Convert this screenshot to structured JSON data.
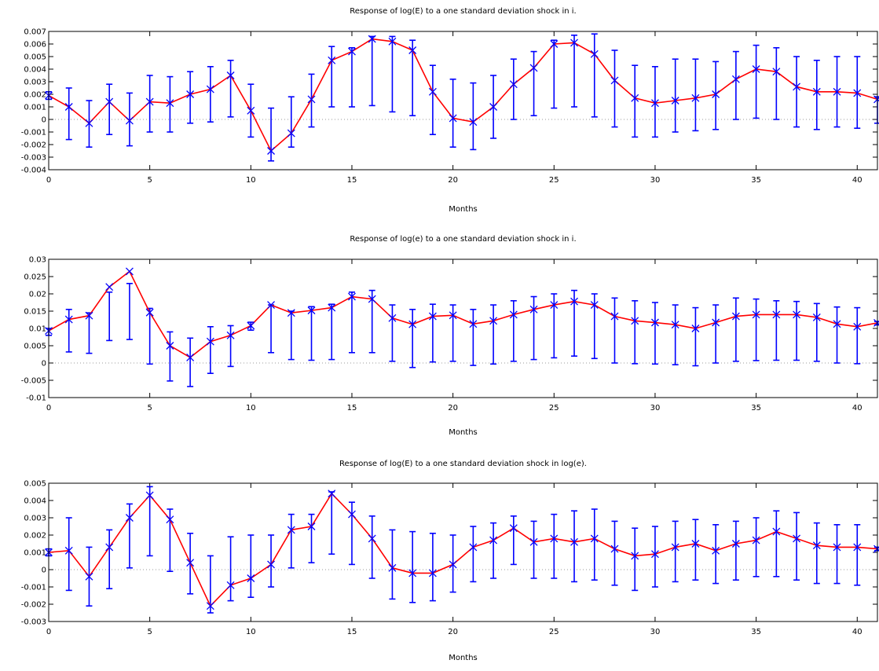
{
  "colors": {
    "line": "#ff0000",
    "errorbar": "#0000ff",
    "marker": "#0000ff",
    "zero": "#999999",
    "axis": "#000000"
  },
  "chart_data": [
    {
      "type": "line",
      "title": "Response of log(E) to a one standard deviation shock in i.",
      "xlabel": "Months",
      "ylabel": "",
      "xlim": [
        0,
        41
      ],
      "ylim": [
        -0.004,
        0.007
      ],
      "xticks": [
        0,
        5,
        10,
        15,
        20,
        25,
        30,
        35,
        40
      ],
      "xtick_labels": [
        "0",
        "5",
        "10",
        "15",
        "20",
        "25",
        "30",
        "35",
        "40"
      ],
      "yticks": [
        -0.004,
        -0.003,
        -0.002,
        -0.001,
        0,
        0.001,
        0.002,
        0.003,
        0.004,
        0.005,
        0.006,
        0.007
      ],
      "ytick_labels": [
        "-0.004",
        "-0.003",
        "-0.002",
        "-0.001",
        "0",
        "0.001",
        "0.002",
        "0.003",
        "0.004",
        "0.005",
        "0.006",
        "0.007"
      ],
      "grid": false,
      "zero_line": true,
      "x": [
        0,
        1,
        2,
        3,
        4,
        5,
        6,
        7,
        8,
        9,
        10,
        11,
        12,
        13,
        14,
        15,
        16,
        17,
        18,
        19,
        20,
        21,
        22,
        23,
        24,
        25,
        26,
        27,
        28,
        29,
        30,
        31,
        32,
        33,
        34,
        35,
        36,
        37,
        38,
        39,
        40,
        41
      ],
      "values": [
        0.0019,
        0.001,
        -0.0003,
        0.0014,
        -0.0001,
        0.0014,
        0.0013,
        0.002,
        0.0024,
        0.0035,
        0.0007,
        -0.0025,
        -0.0011,
        0.0016,
        0.0047,
        0.0054,
        0.0064,
        0.0062,
        0.0055,
        0.0022,
        0.0001,
        -0.0002,
        0.001,
        0.0028,
        0.0041,
        0.006,
        0.0061,
        0.0052,
        0.0031,
        0.0017,
        0.0013,
        0.0015,
        0.0017,
        0.002,
        0.0032,
        0.004,
        0.0038,
        0.0026,
        0.0022,
        0.0022,
        0.0021,
        0.0016
      ],
      "lower": [
        0.0016,
        -0.0016,
        -0.0022,
        -0.0012,
        -0.0021,
        -0.001,
        -0.001,
        -0.0003,
        -0.0002,
        0.0002,
        -0.0014,
        -0.0033,
        -0.0022,
        -0.0006,
        0.001,
        0.001,
        0.0011,
        0.0006,
        0.0003,
        -0.0012,
        -0.0022,
        -0.0024,
        -0.0015,
        0.0,
        0.0003,
        0.0009,
        0.001,
        0.0002,
        -0.0006,
        -0.0014,
        -0.0014,
        -0.001,
        -0.0009,
        -0.0008,
        0.0,
        0.0001,
        0.0,
        -0.0006,
        -0.0008,
        -0.0006,
        -0.0007,
        -0.0003
      ],
      "upper": [
        0.0022,
        0.0025,
        0.0015,
        0.0028,
        0.0021,
        0.0035,
        0.0034,
        0.0038,
        0.0042,
        0.0047,
        0.0028,
        0.0009,
        0.0018,
        0.0036,
        0.0058,
        0.0057,
        0.0066,
        0.0066,
        0.0063,
        0.0043,
        0.0032,
        0.0029,
        0.0035,
        0.0048,
        0.0054,
        0.0063,
        0.0067,
        0.0068,
        0.0055,
        0.0043,
        0.0042,
        0.0048,
        0.0048,
        0.0046,
        0.0054,
        0.0059,
        0.0057,
        0.005,
        0.0047,
        0.005,
        0.005,
        0.0018
      ]
    },
    {
      "type": "line",
      "title": "Response of log(e) to a one standard deviation shock in i.",
      "xlabel": "Months",
      "ylabel": "",
      "xlim": [
        0,
        41
      ],
      "ylim": [
        -0.01,
        0.03
      ],
      "xticks": [
        0,
        5,
        10,
        15,
        20,
        25,
        30,
        35,
        40
      ],
      "xtick_labels": [
        "0",
        "5",
        "10",
        "15",
        "20",
        "25",
        "30",
        "35",
        "40"
      ],
      "yticks": [
        -0.01,
        -0.005,
        0,
        0.005,
        0.01,
        0.015,
        0.02,
        0.025,
        0.03
      ],
      "ytick_labels": [
        "-0.01",
        "-0.005",
        "0",
        "0.005",
        "0.01",
        "0.015",
        "0.02",
        "0.025",
        "0.03"
      ],
      "grid": false,
      "zero_line": true,
      "x": [
        0,
        1,
        2,
        3,
        4,
        5,
        6,
        7,
        8,
        9,
        10,
        11,
        12,
        13,
        14,
        15,
        16,
        17,
        18,
        19,
        20,
        21,
        22,
        23,
        24,
        25,
        26,
        27,
        28,
        29,
        30,
        31,
        32,
        33,
        34,
        35,
        36,
        37,
        38,
        39,
        40,
        41
      ],
      "values": [
        0.0093,
        0.0126,
        0.0137,
        0.022,
        0.0265,
        0.0146,
        0.005,
        0.0016,
        0.0062,
        0.008,
        0.0108,
        0.0168,
        0.0145,
        0.0152,
        0.016,
        0.0192,
        0.0185,
        0.013,
        0.0112,
        0.0135,
        0.0138,
        0.0113,
        0.0122,
        0.014,
        0.0155,
        0.0168,
        0.0178,
        0.0168,
        0.0135,
        0.0122,
        0.0117,
        0.0111,
        0.01,
        0.0117,
        0.0135,
        0.014,
        0.014,
        0.014,
        0.0132,
        0.0113,
        0.0105,
        0.0116
      ],
      "lower": [
        0.008,
        0.0032,
        0.0028,
        0.0065,
        0.0068,
        -0.0003,
        -0.0052,
        -0.0068,
        -0.003,
        -0.001,
        0.0095,
        0.003,
        0.001,
        0.0008,
        0.001,
        0.003,
        0.003,
        0.0005,
        -0.0013,
        0.0003,
        0.0005,
        -0.0007,
        -0.0003,
        0.0005,
        0.001,
        0.0015,
        0.002,
        0.0013,
        0.0,
        -0.0002,
        -0.0003,
        -0.0005,
        -0.0008,
        0.0,
        0.0005,
        0.0007,
        0.0008,
        0.0008,
        0.0005,
        0.0,
        -0.0002,
        0.011
      ],
      "upper": [
        0.01,
        0.0155,
        0.0145,
        0.0205,
        0.023,
        0.0158,
        0.009,
        0.0072,
        0.0105,
        0.0108,
        0.0118,
        0.0168,
        0.015,
        0.0163,
        0.017,
        0.0205,
        0.021,
        0.0168,
        0.0155,
        0.017,
        0.0168,
        0.0155,
        0.0168,
        0.018,
        0.0192,
        0.02,
        0.021,
        0.02,
        0.0188,
        0.018,
        0.0175,
        0.0168,
        0.016,
        0.0168,
        0.0188,
        0.0185,
        0.018,
        0.0178,
        0.0172,
        0.0162,
        0.016,
        0.012
      ]
    },
    {
      "type": "line",
      "title": "Response of log(E) to a one standard deviation shock in log(e).",
      "xlabel": "Months",
      "ylabel": "",
      "xlim": [
        0,
        41
      ],
      "ylim": [
        -0.003,
        0.005
      ],
      "xticks": [
        0,
        5,
        10,
        15,
        20,
        25,
        30,
        35,
        40
      ],
      "xtick_labels": [
        "0",
        "5",
        "10",
        "15",
        "20",
        "25",
        "30",
        "35",
        "40"
      ],
      "yticks": [
        -0.003,
        -0.002,
        -0.001,
        0,
        0.001,
        0.002,
        0.003,
        0.004,
        0.005
      ],
      "ytick_labels": [
        "-0.003",
        "-0.002",
        "-0.001",
        "0",
        "0.001",
        "0.002",
        "0.003",
        "0.004",
        "0.005"
      ],
      "grid": false,
      "zero_line": true,
      "x": [
        0,
        1,
        2,
        3,
        4,
        5,
        6,
        7,
        8,
        9,
        10,
        11,
        12,
        13,
        14,
        15,
        16,
        17,
        18,
        19,
        20,
        21,
        22,
        23,
        24,
        25,
        26,
        27,
        28,
        29,
        30,
        31,
        32,
        33,
        34,
        35,
        36,
        37,
        38,
        39,
        40,
        41
      ],
      "values": [
        0.001,
        0.0011,
        -0.0004,
        0.0013,
        0.003,
        0.0043,
        0.0029,
        0.0004,
        -0.0021,
        -0.0009,
        -0.0005,
        0.0003,
        0.0023,
        0.0025,
        0.0044,
        0.0032,
        0.0018,
        0.0001,
        -0.0002,
        -0.0002,
        0.0003,
        0.0013,
        0.0017,
        0.0024,
        0.0016,
        0.0018,
        0.0016,
        0.0018,
        0.0012,
        0.0008,
        0.0009,
        0.0013,
        0.0015,
        0.0011,
        0.0015,
        0.0017,
        0.0022,
        0.0018,
        0.0014,
        0.0013,
        0.0013,
        0.0012
      ],
      "lower": [
        0.0008,
        -0.0012,
        -0.0021,
        -0.0011,
        0.0001,
        0.0008,
        -0.0001,
        -0.0014,
        -0.0025,
        -0.0018,
        -0.0016,
        -0.001,
        0.0001,
        0.0004,
        0.0009,
        0.0003,
        -0.0005,
        -0.0017,
        -0.0019,
        -0.0018,
        -0.0013,
        -0.0007,
        -0.0005,
        0.0003,
        -0.0005,
        -0.0005,
        -0.0007,
        -0.0006,
        -0.0009,
        -0.0012,
        -0.001,
        -0.0007,
        -0.0006,
        -0.0008,
        -0.0006,
        -0.0004,
        -0.0004,
        -0.0006,
        -0.0008,
        -0.0008,
        -0.0009,
        0.0011
      ],
      "upper": [
        0.0012,
        0.003,
        0.0013,
        0.0023,
        0.0038,
        0.0048,
        0.0035,
        0.0021,
        0.0008,
        0.0019,
        0.002,
        0.002,
        0.0032,
        0.0032,
        0.0045,
        0.0039,
        0.0031,
        0.0023,
        0.0022,
        0.0021,
        0.002,
        0.0025,
        0.0027,
        0.0031,
        0.0028,
        0.0032,
        0.0034,
        0.0035,
        0.0028,
        0.0024,
        0.0025,
        0.0028,
        0.0029,
        0.0026,
        0.0028,
        0.003,
        0.0034,
        0.0033,
        0.0027,
        0.0026,
        0.0026,
        0.0013
      ]
    }
  ]
}
